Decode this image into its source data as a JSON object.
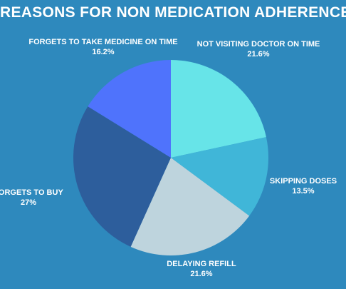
{
  "chart_data": {
    "type": "pie",
    "title": "REASONS FOR NON MEDICATION ADHERENCE",
    "slices": [
      {
        "label": "NOT VISITING DOCTOR ON TIME",
        "value": 21.6,
        "value_label": "21.6%",
        "color": "#67e4e8"
      },
      {
        "label": "SKIPPING DOSES",
        "value": 13.5,
        "value_label": "13.5%",
        "color": "#40b6d8"
      },
      {
        "label": "DELAYING REFILL",
        "value": 21.6,
        "value_label": "21.6%",
        "color": "#bed4dd"
      },
      {
        "label": "FORGETS TO BUY",
        "value": 27,
        "value_label": "27%",
        "color": "#2d5e9c"
      },
      {
        "label": "FORGETS TO TAKE MEDICINE ON TIME",
        "value": 16.2,
        "value_label": "16.2%",
        "color": "#4f73fc"
      }
    ],
    "start_angle": "12 o'clock",
    "direction": "clockwise",
    "legend": "none (outside labels)"
  }
}
